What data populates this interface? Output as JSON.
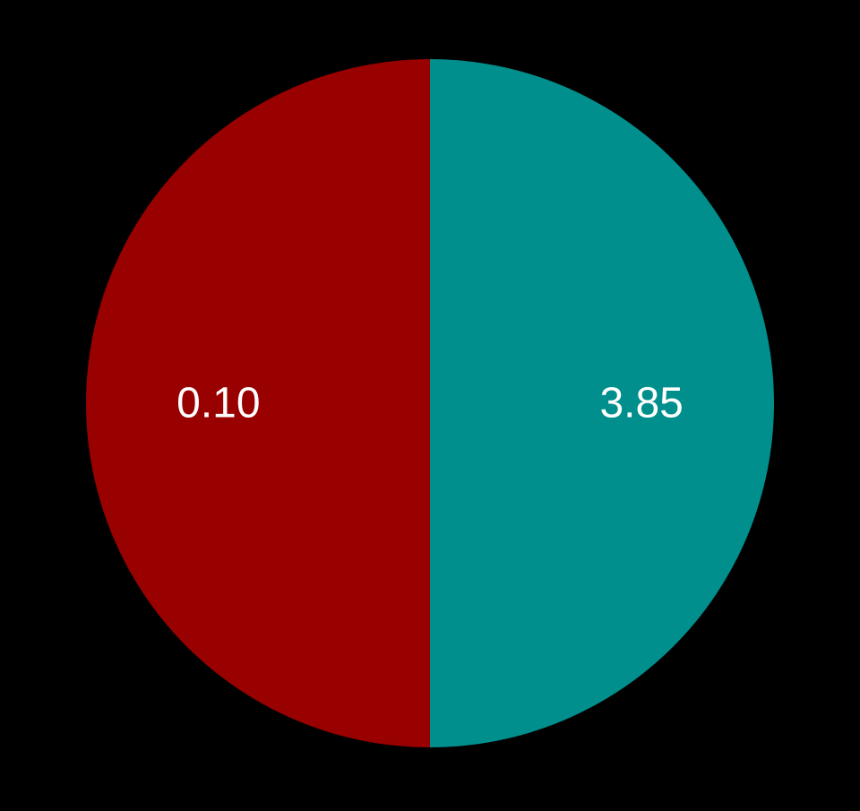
{
  "chart_data": {
    "type": "pie",
    "slices": [
      {
        "label": "0.10",
        "value": 50,
        "color": "#990000"
      },
      {
        "label": "3.85",
        "value": 50,
        "color": "#008f8c"
      }
    ],
    "start": "top",
    "direction": "counterclockwise",
    "label_color": "#ffffff",
    "background": "#000000"
  }
}
